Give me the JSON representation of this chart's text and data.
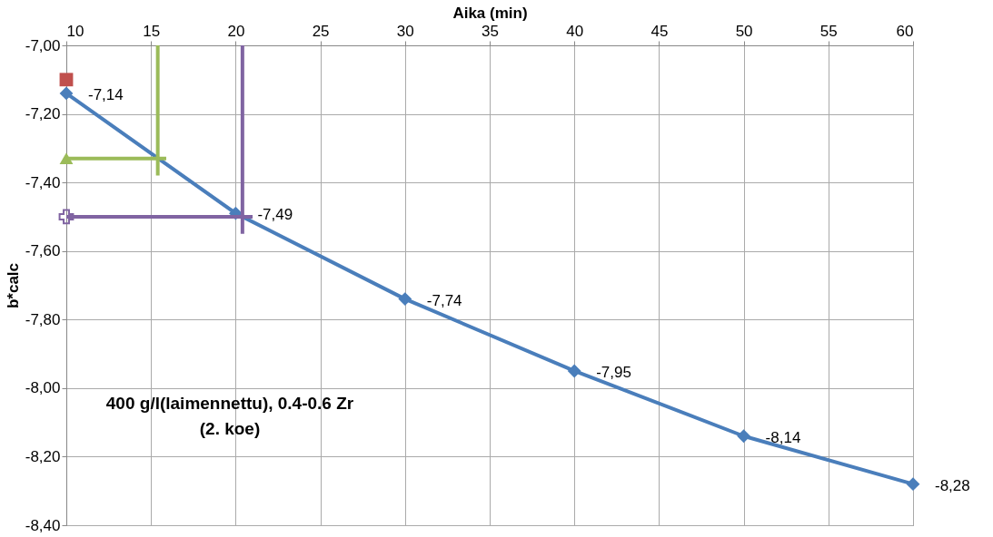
{
  "chart_data": {
    "type": "line",
    "xlabel": "Aika (min)",
    "ylabel": "b*calc",
    "annotations": [
      "400 g/l(laimennettu), 0.4-0.6 Zr\n(2. koe)"
    ],
    "xlim": [
      10,
      60
    ],
    "xticks": [
      10,
      15,
      20,
      25,
      30,
      35,
      40,
      45,
      50,
      55,
      60
    ],
    "ylim": [
      -8.4,
      -7.0
    ],
    "yticks": [
      {
        "value": -7.0,
        "label": "-7,00"
      },
      {
        "value": -7.2,
        "label": "-7,20"
      },
      {
        "value": -7.4,
        "label": "-7,40"
      },
      {
        "value": -7.6,
        "label": "-7,60"
      },
      {
        "value": -7.8,
        "label": "-7,80"
      },
      {
        "value": -8.0,
        "label": "-8,00"
      },
      {
        "value": -8.2,
        "label": "-8,20"
      },
      {
        "value": -8.4,
        "label": "-8,40"
      }
    ],
    "grid": true,
    "series": [
      {
        "marker": "diamond",
        "color": "#4a7ebb",
        "x": [
          10,
          20,
          30,
          40,
          50,
          60
        ],
        "values": [
          -7.14,
          -7.49,
          -7.74,
          -7.95,
          -8.14,
          -8.28
        ],
        "value_labels": [
          "-7,14",
          "-7,49",
          "-7,74",
          "-7,95",
          "-8,14",
          "-8,28"
        ]
      },
      {
        "type": "scatter",
        "marker": "square",
        "color": "#c0504d",
        "x": [
          10
        ],
        "values": [
          -7.1
        ]
      },
      {
        "type": "scatter",
        "marker": "triangle",
        "color": "#9bbb59",
        "x": [
          10
        ],
        "values": [
          -7.33
        ]
      },
      {
        "type": "line",
        "marker": "none",
        "color": "#9bbb59",
        "x": [
          10,
          15.9
        ],
        "values": [
          -7.33,
          -7.33
        ]
      },
      {
        "type": "line",
        "marker": "none",
        "color": "#9bbb59",
        "x": [
          15.4,
          15.4
        ],
        "values": [
          -7.0,
          -7.38
        ]
      },
      {
        "type": "scatter",
        "marker": "cross",
        "color": "#8064a2",
        "x": [
          10
        ],
        "values": [
          -7.5
        ]
      },
      {
        "type": "line",
        "marker": "none",
        "color": "#8064a2",
        "x": [
          10,
          21
        ],
        "values": [
          -7.5,
          -7.5
        ]
      },
      {
        "type": "line",
        "marker": "none",
        "color": "#8064a2",
        "x": [
          20.4,
          20.4
        ],
        "values": [
          -7.0,
          -7.55
        ]
      }
    ]
  }
}
